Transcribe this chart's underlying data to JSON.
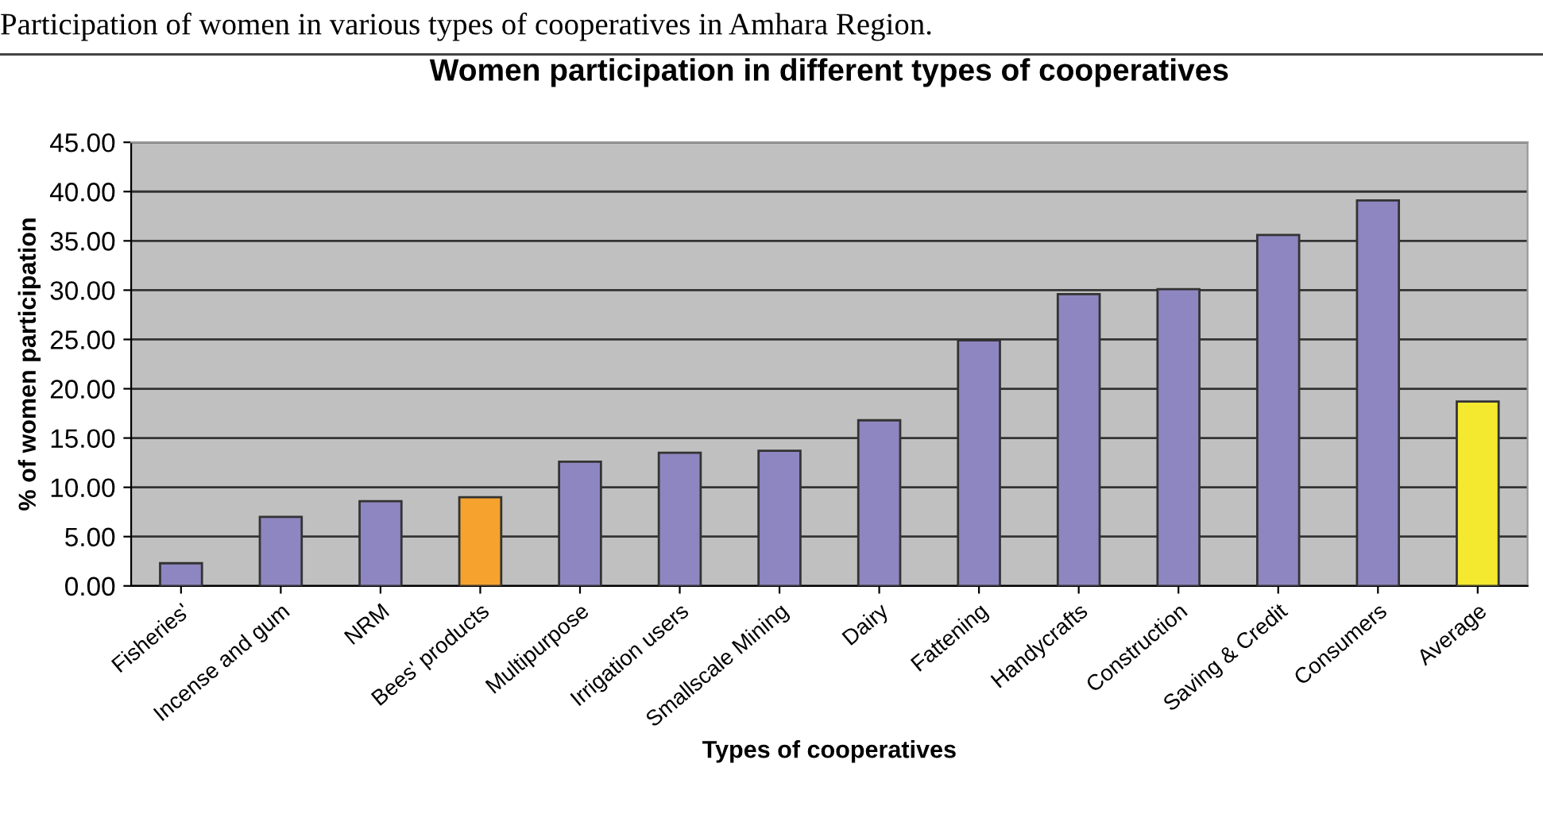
{
  "chart_data": {
    "type": "bar",
    "title": "Women participation in different types of cooperatives",
    "xlabel": "Types of cooperatives",
    "ylabel": "% of women participation",
    "annotations": [
      "Participation of women in various types of cooperatives in Amhara Region."
    ],
    "categories": [
      "Fisheries'",
      "Incense and gum",
      "NRM",
      "Bees' products",
      "Multipurpose",
      "Irrigation users",
      "Smallscale Mining",
      "Dairy",
      "Fattening",
      "Handycrafts",
      "Construction",
      "Saving & Credit",
      "Consumers",
      "Average"
    ],
    "values": [
      2.3,
      7.0,
      8.6,
      9.0,
      12.6,
      13.5,
      13.7,
      16.8,
      24.9,
      29.6,
      30.1,
      35.6,
      39.1,
      18.7
    ],
    "colors": [
      "#8e86c0",
      "#8e86c0",
      "#8e86c0",
      "#f5a22f",
      "#8e86c0",
      "#8e86c0",
      "#8e86c0",
      "#8e86c0",
      "#8e86c0",
      "#8e86c0",
      "#8e86c0",
      "#8e86c0",
      "#8e86c0",
      "#f5e930"
    ],
    "ylim": [
      0,
      45
    ],
    "yticks": [
      {
        "value": 0,
        "label": "0.00"
      },
      {
        "value": 5,
        "label": "5.00"
      },
      {
        "value": 10,
        "label": "10.00"
      },
      {
        "value": 15,
        "label": "15.00"
      },
      {
        "value": 20,
        "label": "20.00"
      },
      {
        "value": 25,
        "label": "25.00"
      },
      {
        "value": 30,
        "label": "30.00"
      },
      {
        "value": 35,
        "label": "35.00"
      },
      {
        "value": 40,
        "label": "40.00"
      },
      {
        "value": 45,
        "label": "45.00"
      }
    ],
    "grid": "y",
    "legend": false
  }
}
